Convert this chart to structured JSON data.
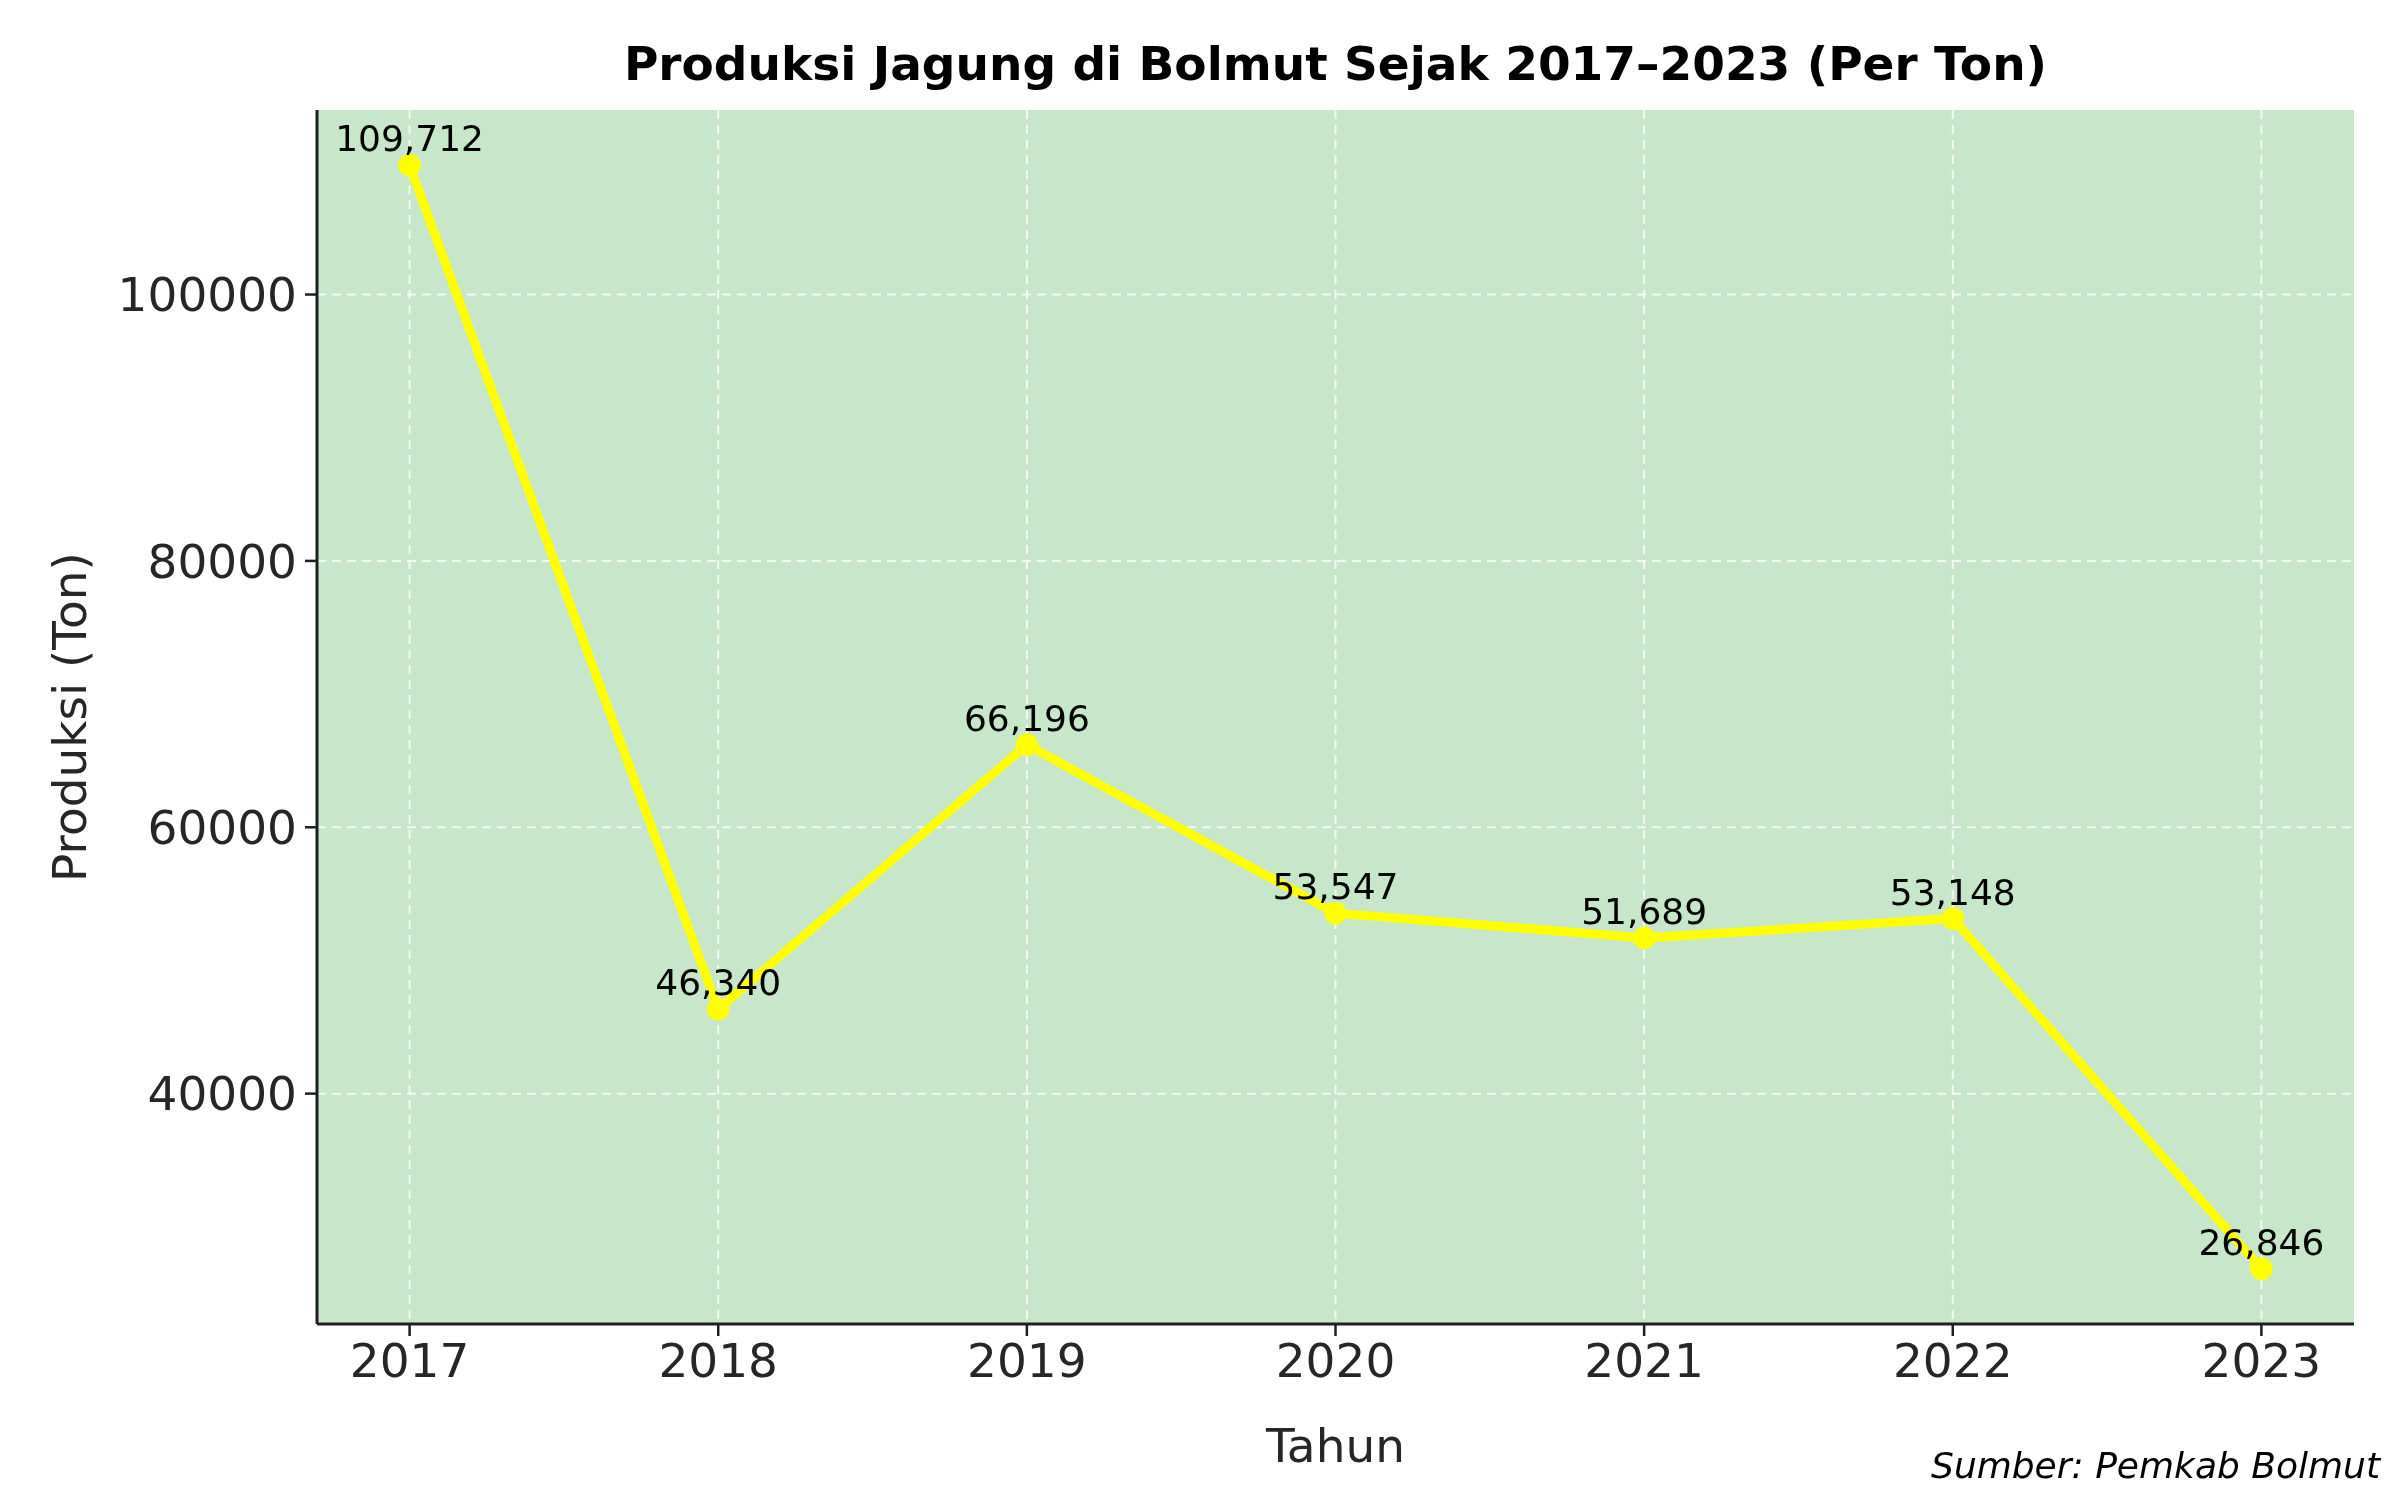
{
  "chart_data": {
    "type": "line",
    "title": "Produksi Jagung di Bolmut Sejak 2017–2023 (Per Ton)",
    "xlabel": "Tahun",
    "ylabel": "Produksi (Ton)",
    "annotations": [
      "Sumber: Pemkab Bolmut"
    ],
    "x": [
      2017,
      2018,
      2019,
      2020,
      2021,
      2022,
      2023
    ],
    "values": [
      109712,
      46340,
      66196,
      53547,
      51689,
      53148,
      26846
    ],
    "value_labels": [
      "109,712",
      "46,340",
      "66,196",
      "53,547",
      "51,689",
      "53,148",
      "26,846"
    ],
    "color": "#ffff00",
    "xlim": [
      2016.7,
      2023.3
    ],
    "xticks": [
      2017,
      2018,
      2019,
      2020,
      2021,
      2022,
      2023
    ],
    "ylim": [
      22703,
      113855
    ],
    "yticks": [
      40000,
      60000,
      80000,
      100000
    ],
    "grid": true,
    "marker": "circle",
    "line_style": "solid"
  }
}
